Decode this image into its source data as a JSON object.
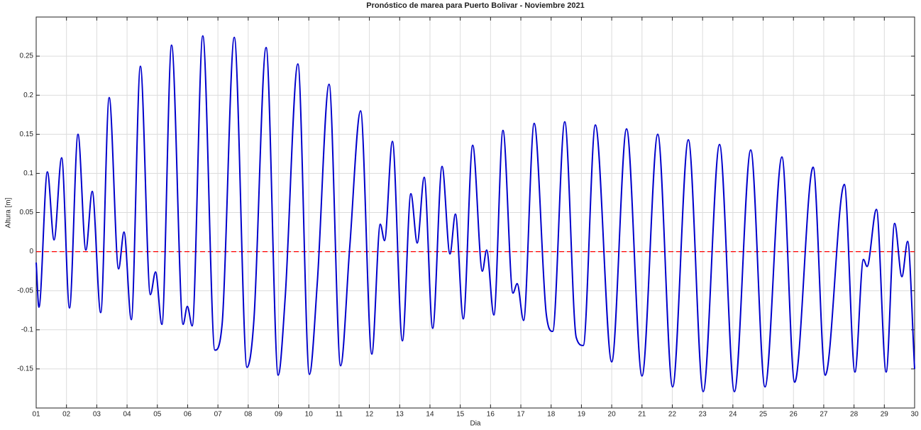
{
  "chart_data": {
    "type": "line",
    "title": "Pronóstico de marea para Puerto Bolivar - Noviembre 2021",
    "x_label": "Dia",
    "y_label": "Altura [m]",
    "xlim": [
      1,
      30
    ],
    "ylim": [
      -0.2,
      0.3
    ],
    "xticks": [
      {
        "value": 1,
        "label": "01"
      },
      {
        "value": 2,
        "label": "02"
      },
      {
        "value": 3,
        "label": "03"
      },
      {
        "value": 4,
        "label": "04"
      },
      {
        "value": 5,
        "label": "05"
      },
      {
        "value": 6,
        "label": "06"
      },
      {
        "value": 7,
        "label": "07"
      },
      {
        "value": 8,
        "label": "08"
      },
      {
        "value": 9,
        "label": "09"
      },
      10,
      11,
      12,
      13,
      14,
      15,
      16,
      17,
      18,
      19,
      20,
      21,
      22,
      23,
      24,
      25,
      26,
      27,
      28,
      29,
      30
    ],
    "yticks": [
      -0.15,
      -0.1,
      -0.05,
      0,
      0.05,
      0.1,
      0.15,
      0.2,
      0.25
    ],
    "grid": true,
    "zero_line": {
      "value": 0,
      "color": "#ff0000"
    },
    "x": [
      1.0,
      1.09,
      1.37,
      1.59,
      1.84,
      2.1,
      2.38,
      2.64,
      2.85,
      3.13,
      3.41,
      3.72,
      3.9,
      4.14,
      4.44,
      4.77,
      4.94,
      5.15,
      5.47,
      5.85,
      5.99,
      6.15,
      6.5,
      6.9,
      7.14,
      7.54,
      7.96,
      8.19,
      8.59,
      8.99,
      9.22,
      9.64,
      10.02,
      10.28,
      10.67,
      11.05,
      11.35,
      11.71,
      12.08,
      12.36,
      12.5,
      12.76,
      13.09,
      13.37,
      13.58,
      13.81,
      14.09,
      14.4,
      14.66,
      14.84,
      15.1,
      15.41,
      15.73,
      15.87,
      16.11,
      16.41,
      16.74,
      16.88,
      17.09,
      17.44,
      17.84,
      18.05,
      18.45,
      18.83,
      19.06,
      19.46,
      20.0,
      20.49,
      21.0,
      21.52,
      22.01,
      22.53,
      23.02,
      23.56,
      24.05,
      24.59,
      25.06,
      25.62,
      26.04,
      26.65,
      27.05,
      27.68,
      28.03,
      28.31,
      28.43,
      28.74,
      29.06,
      29.34,
      29.58,
      29.77,
      30.0
    ],
    "series": [
      {
        "name": "Altura",
        "color": "#0000cc",
        "values": [
          -0.014,
          -0.071,
          0.102,
          0.015,
          0.12,
          -0.072,
          0.15,
          0.002,
          0.077,
          -0.078,
          0.197,
          -0.022,
          0.025,
          -0.087,
          0.237,
          -0.055,
          -0.026,
          -0.093,
          0.264,
          -0.093,
          -0.07,
          -0.095,
          0.276,
          -0.126,
          -0.092,
          0.274,
          -0.148,
          -0.086,
          0.261,
          -0.158,
          -0.059,
          0.24,
          -0.157,
          -0.04,
          0.214,
          -0.146,
          0.005,
          0.18,
          -0.131,
          0.035,
          0.014,
          0.141,
          -0.114,
          0.074,
          0.011,
          0.095,
          -0.098,
          0.109,
          -0.003,
          0.048,
          -0.086,
          0.136,
          -0.025,
          0.002,
          -0.081,
          0.155,
          -0.053,
          -0.041,
          -0.088,
          0.164,
          -0.08,
          -0.102,
          0.166,
          -0.11,
          -0.12,
          0.162,
          -0.141,
          0.157,
          -0.159,
          0.15,
          -0.173,
          0.143,
          -0.179,
          0.137,
          -0.179,
          0.13,
          -0.173,
          0.121,
          -0.167,
          0.108,
          -0.158,
          0.086,
          -0.154,
          -0.01,
          -0.019,
          0.054,
          -0.154,
          0.036,
          -0.032,
          0.013,
          -0.15
        ]
      }
    ]
  }
}
